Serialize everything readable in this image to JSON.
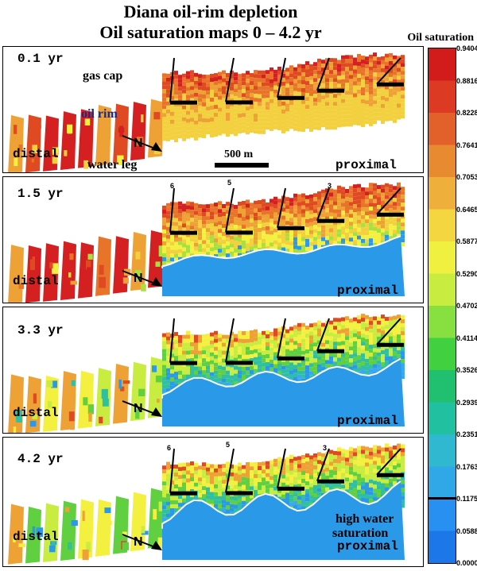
{
  "title": {
    "line1": "Diana oil-rim depletion",
    "line2": "Oil saturation maps 0 – 4.2 yr"
  },
  "colorbar": {
    "title": "Oil saturation",
    "ticks": [
      "0.9404",
      "0.8816",
      "0.8228",
      "0.7641",
      "0.7053",
      "0.6465",
      "0.5877",
      "0.5290",
      "0.4702",
      "0.4114",
      "0.3526",
      "0.2939",
      "0.2351",
      "0.1763",
      "0.1175",
      "0.0588",
      "0.0000"
    ],
    "colors": [
      "#d21c1c",
      "#dc3a22",
      "#e2602a",
      "#e88a30",
      "#eeb03a",
      "#f4d640",
      "#f0f040",
      "#c8ec40",
      "#88e040",
      "#40d040",
      "#20c070",
      "#20c0a0",
      "#30b8d0",
      "#30a8e8",
      "#2890f0",
      "#1c78e8",
      "#ffffff"
    ]
  },
  "panels": [
    {
      "time": "0.1 yr",
      "distal": "distal",
      "proximal": "proximal",
      "gas_cap": "gas cap",
      "oil_rim": "oil rim",
      "water_leg": "water leg",
      "scale": "500 m"
    },
    {
      "time": "1.5 yr",
      "distal": "distal",
      "proximal": "proximal",
      "wells": [
        "6",
        "5",
        "3"
      ]
    },
    {
      "time": "3.3 yr",
      "distal": "distal",
      "proximal": "proximal"
    },
    {
      "time": "4.2 yr",
      "distal": "distal",
      "proximal": "proximal",
      "wells": [
        "6",
        "5",
        "3"
      ],
      "high_water_1": "high water",
      "high_water_2": "saturation"
    }
  ],
  "north_symbol": "N"
}
